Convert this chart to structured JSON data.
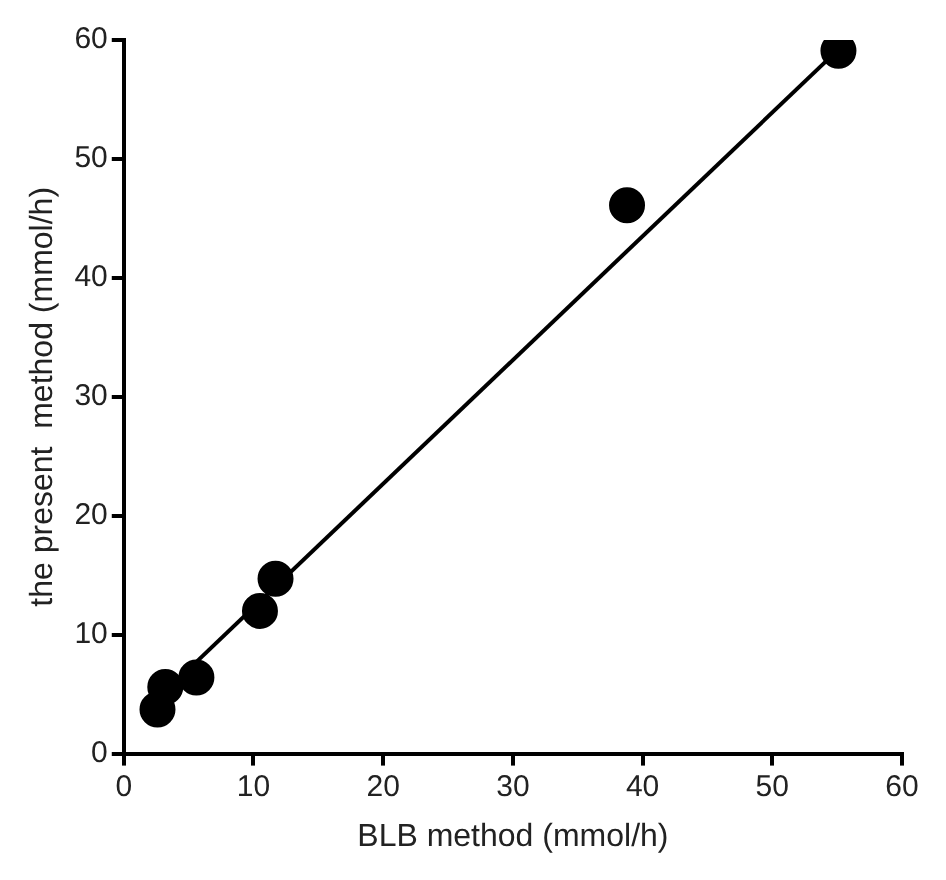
{
  "chart_data": {
    "type": "scatter",
    "xlabel": "BLB method (mmol/h)",
    "ylabel": "the present  method (mmol/h)",
    "xlim": [
      0,
      60
    ],
    "xticks": [
      0,
      10,
      20,
      30,
      40,
      50,
      60
    ],
    "ylim": [
      0,
      60
    ],
    "yticks": [
      0,
      10,
      20,
      30,
      40,
      50,
      60
    ],
    "grid": false,
    "legend": false,
    "marker": "circle",
    "series": [
      {
        "color": "#000000",
        "x": [
          2.6,
          3.2,
          5.6,
          10.5,
          11.7,
          38.8,
          55.1
        ],
        "values": [
          3.7,
          5.6,
          6.4,
          12.0,
          14.7,
          46.1,
          59.1
        ]
      },
      {
        "type": "line",
        "color": "#000000",
        "marker": "none",
        "x": [
          3.0,
          54.8
        ],
        "values": [
          5.0,
          58.9
        ]
      }
    ]
  }
}
